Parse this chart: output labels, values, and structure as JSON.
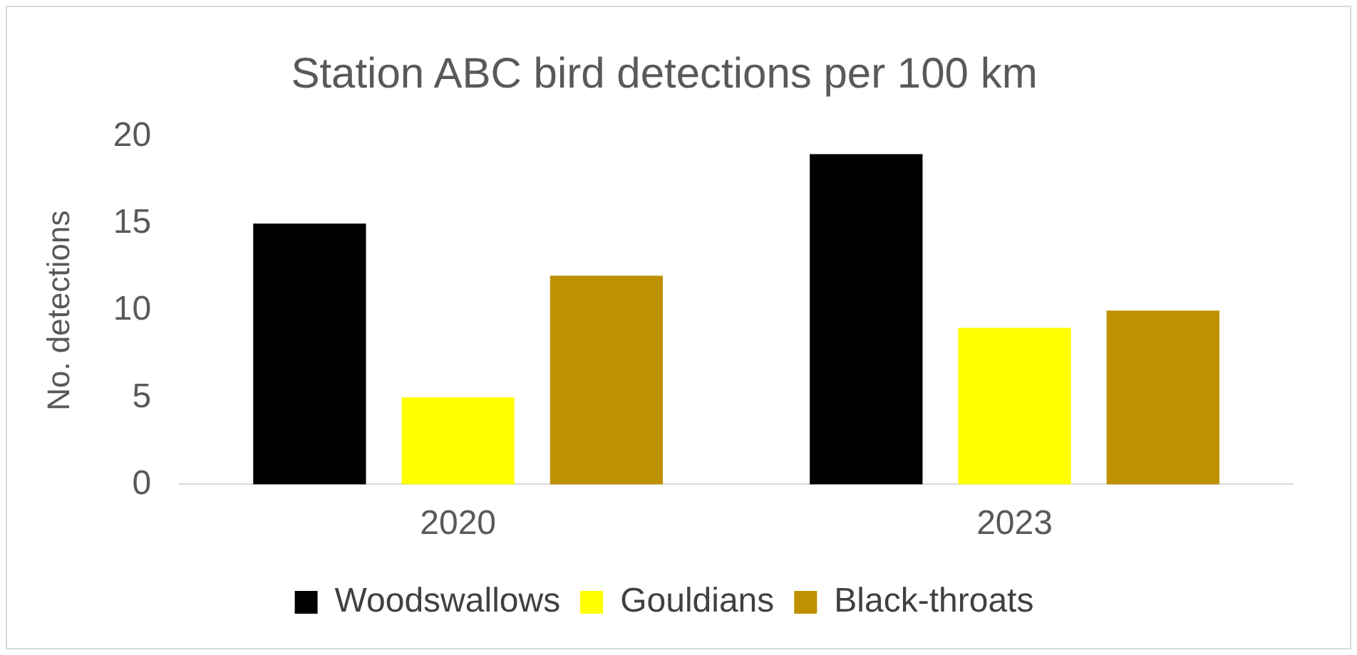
{
  "chart_data": {
    "type": "bar",
    "title": "Station ABC bird detections per 100 km",
    "ylabel": "No. detections",
    "categories": [
      "2020",
      "2023"
    ],
    "series": [
      {
        "name": "Woodswallows",
        "color": "#000000",
        "values": [
          15,
          19
        ]
      },
      {
        "name": "Gouldians",
        "color": "#ffff00",
        "values": [
          5,
          9
        ]
      },
      {
        "name": "Black-throats",
        "color": "#bf9000",
        "values": [
          12,
          10
        ]
      }
    ],
    "ylim": [
      0,
      20
    ],
    "yticks": [
      0,
      5,
      10,
      15,
      20
    ],
    "grid": false,
    "legend": "bottom"
  }
}
